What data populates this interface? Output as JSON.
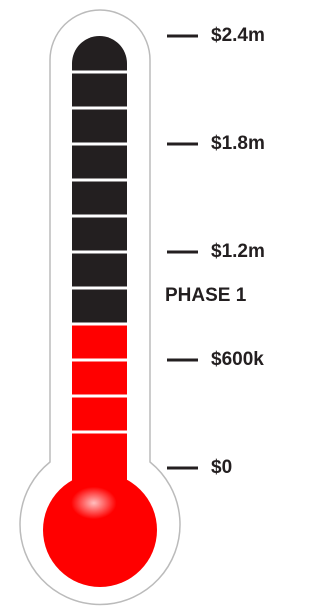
{
  "chart_data": {
    "type": "thermometer",
    "values": [
      800000
    ],
    "color": "#ff0000",
    "empty_color": "#231f20",
    "ylim": [
      0,
      2400000
    ],
    "yticks": [
      {
        "value": 0,
        "label": "$0"
      },
      {
        "value": 600000,
        "label": "$600k"
      },
      {
        "value": 1200000,
        "label": "$1.2m"
      },
      {
        "value": 1800000,
        "label": "$1.8m"
      },
      {
        "value": 2400000,
        "label": "$2.4m"
      }
    ],
    "annotation": "PHASE 1"
  }
}
